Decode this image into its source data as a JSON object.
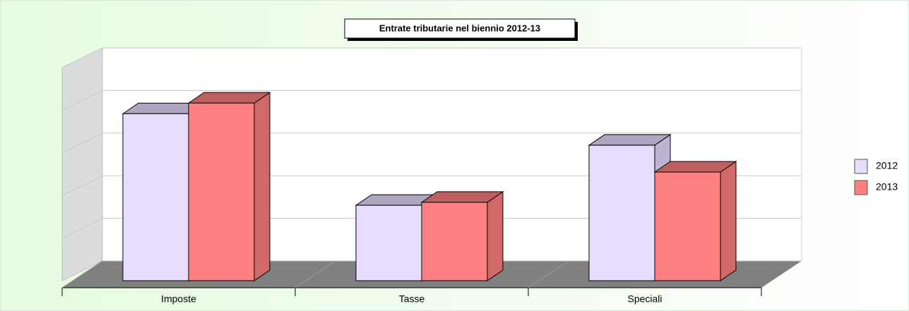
{
  "chart_data": {
    "type": "bar3d",
    "title": "Entrate tributarie nel biennio 2012-13",
    "categories": [
      "Imposte",
      "Tasse",
      "Speciali"
    ],
    "series": [
      {
        "name": "2012",
        "color": "#e8dcff",
        "values": [
          3.92,
          1.77,
          3.18
        ]
      },
      {
        "name": "2013",
        "color": "#ff8080",
        "values": [
          4.17,
          1.84,
          2.55
        ]
      }
    ],
    "ylim": [
      0,
      5
    ],
    "yticks": [
      0,
      1,
      2,
      3,
      4,
      5
    ],
    "grid": true,
    "legend": "right"
  }
}
